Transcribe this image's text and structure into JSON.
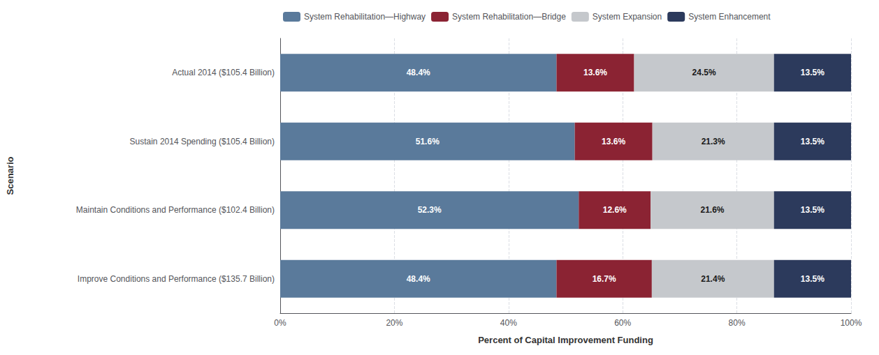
{
  "chart_data": {
    "type": "bar",
    "orientation": "horizontal",
    "stacked": true,
    "data_labels": true,
    "grid": true,
    "legend": "upper left",
    "xlabel": "Percent of Capital Improvement Funding",
    "ylabel": "Scenario",
    "categories": [
      "Actual 2014 ($105.4 Billion)",
      "Sustain 2014 Spending ($105.4 Billion)",
      "Maintain Conditions and Performance ($102.4 Billion)",
      "Improve Conditions and Performance ($135.7 Billion)"
    ],
    "series": [
      {
        "name": "System Rehabilitation—Highway",
        "color": "#5a7a9b",
        "values": [
          48.4,
          51.6,
          52.3,
          48.4
        ],
        "value_labels": [
          "48.4%",
          "51.6%",
          "52.3%",
          "48.4%"
        ]
      },
      {
        "name": "System Rehabilitation—Bridge",
        "color": "#8b2333",
        "values": [
          13.6,
          13.6,
          12.6,
          16.7
        ],
        "value_labels": [
          "13.6%",
          "13.6%",
          "12.6%",
          "16.7%"
        ]
      },
      {
        "name": "System Expansion",
        "color": "#c5c8cc",
        "values": [
          24.5,
          21.3,
          21.6,
          21.4
        ],
        "value_labels": [
          "24.5%",
          "21.3%",
          "21.6%",
          "21.4%"
        ]
      },
      {
        "name": "System Enhancement",
        "color": "#2c3a5c",
        "values": [
          13.5,
          13.5,
          13.5,
          13.5
        ],
        "value_labels": [
          "13.5%",
          "13.5%",
          "13.5%",
          "13.5%"
        ]
      }
    ],
    "xlim": [
      0,
      100
    ],
    "xticks": [
      {
        "value": 0,
        "label": "0%"
      },
      {
        "value": 20,
        "label": "20%"
      },
      {
        "value": 40,
        "label": "40%"
      },
      {
        "value": 60,
        "label": "60%"
      },
      {
        "value": 80,
        "label": "80%"
      },
      {
        "value": 100,
        "label": "100%"
      }
    ]
  }
}
